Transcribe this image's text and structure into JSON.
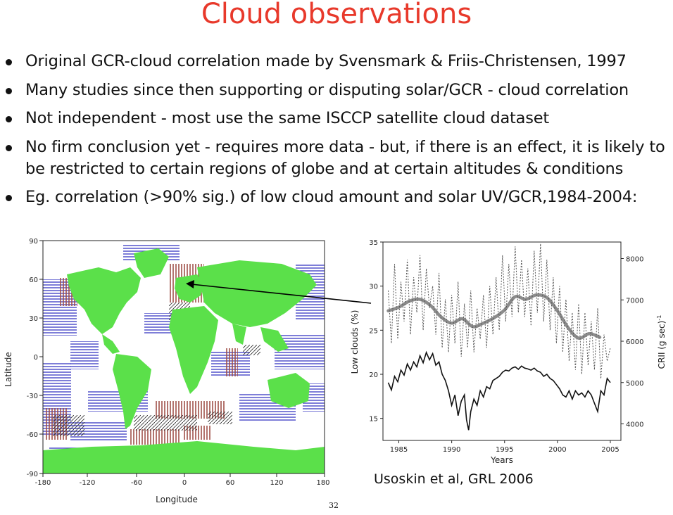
{
  "title": "Cloud observations",
  "bullets": [
    "Original GCR-cloud correlation made by Svensmark & Friis-Christensen, 1997",
    "Many studies since then supporting or disputing solar/GCR - cloud correlation",
    "Not independent - most use the same ISCCP satellite cloud dataset",
    "No firm conclusion yet - requires more data - but, if there is an effect, it is likely to be restricted to certain regions of globe and at certain altitudes & conditions",
    "Eg. correlation (>90% sig.) of low cloud amount and solar UV/GCR,1984-2004:"
  ],
  "map": {
    "xlabel": "Longitude",
    "ylabel": "Latitude",
    "x_ticks": [
      "-180",
      "-120",
      "-60",
      "0",
      "60",
      "120",
      "180"
    ],
    "y_ticks": [
      "90",
      "60",
      "30",
      "0",
      "-30",
      "-60",
      "-90"
    ],
    "colors": {
      "land": "#5be04a",
      "positive": "#a0504a",
      "negative": "#4747c8",
      "hatch": "#333333"
    }
  },
  "chart_data": {
    "type": "line",
    "xlabel": "Years",
    "ylabel": "Low clouds (%)",
    "y2label": "CRII (g sec)",
    "y2label_exp": "-1",
    "xlim": [
      1983.5,
      2006
    ],
    "ylim": [
      12.5,
      35
    ],
    "y2lim": [
      3600,
      8400
    ],
    "x_ticks": [
      "1985",
      "1990",
      "1995",
      "2000",
      "2005"
    ],
    "y_ticks": [
      "15",
      "20",
      "25",
      "30",
      "35"
    ],
    "y2_ticks": [
      "4000",
      "5000",
      "6000",
      "7000",
      "8000"
    ],
    "series": [
      {
        "style": "smoothed",
        "color": "#8c8c8c",
        "x": [
          1984,
          1985,
          1986,
          1987,
          1988,
          1989,
          1990,
          1991,
          1992,
          1993,
          1994,
          1995,
          1996,
          1997,
          1998,
          1999,
          2000,
          2001,
          2002,
          2003,
          2004
        ],
        "y": [
          27.2,
          27.6,
          28.3,
          28.5,
          27.8,
          26.5,
          25.8,
          26.3,
          25.4,
          25.8,
          26.4,
          27.3,
          28.8,
          28.5,
          29.0,
          28.7,
          27.2,
          25.3,
          24.1,
          24.6,
          24.2
        ]
      },
      {
        "style": "dotted",
        "color": "#555555",
        "x": [
          1984,
          1984.3,
          1984.6,
          1984.9,
          1985.2,
          1985.5,
          1985.8,
          1986.1,
          1986.4,
          1986.7,
          1987.0,
          1987.3,
          1987.6,
          1987.9,
          1988.2,
          1988.5,
          1988.8,
          1989.1,
          1989.4,
          1989.7,
          1990.0,
          1990.3,
          1990.6,
          1990.9,
          1991.2,
          1991.5,
          1991.8,
          1992.1,
          1992.4,
          1992.7,
          1993.0,
          1993.3,
          1993.6,
          1993.9,
          1994.2,
          1994.5,
          1994.8,
          1995.1,
          1995.4,
          1995.7,
          1996.0,
          1996.3,
          1996.6,
          1996.9,
          1997.2,
          1997.5,
          1997.8,
          1998.1,
          1998.4,
          1998.7,
          1999.0,
          1999.3,
          1999.6,
          1999.9,
          2000.2,
          2000.5,
          2000.8,
          2001.1,
          2001.4,
          2001.7,
          2002.0,
          2002.3,
          2002.6,
          2002.9,
          2003.2,
          2003.5,
          2003.8,
          2004.1,
          2004.4,
          2004.7,
          2005.0
        ],
        "y": [
          29.5,
          23.5,
          32.5,
          24.0,
          30.5,
          26.0,
          33.0,
          24.5,
          31.0,
          27.0,
          33.5,
          25.0,
          32.0,
          27.5,
          30.0,
          24.5,
          31.5,
          23.0,
          28.5,
          22.5,
          29.0,
          23.5,
          30.5,
          22.0,
          28.0,
          23.0,
          29.5,
          22.5,
          27.5,
          24.0,
          29.0,
          23.0,
          30.0,
          24.5,
          31.0,
          25.0,
          33.5,
          26.0,
          32.5,
          26.5,
          34.5,
          27.0,
          33.0,
          26.5,
          32.0,
          25.5,
          34.0,
          27.0,
          34.8,
          26.0,
          33.0,
          25.0,
          31.0,
          23.5,
          30.0,
          22.5,
          28.5,
          21.5,
          27.0,
          20.5,
          28.0,
          20.0,
          27.0,
          21.0,
          26.0,
          20.5,
          27.5,
          19.5,
          24.5,
          21.5,
          23.0
        ]
      },
      {
        "style": "solid",
        "color": "#111111",
        "x": [
          1984,
          1984.3,
          1984.6,
          1984.9,
          1985.2,
          1985.5,
          1985.8,
          1986.1,
          1986.4,
          1986.7,
          1987.0,
          1987.3,
          1987.6,
          1987.9,
          1988.2,
          1988.5,
          1988.8,
          1989.1,
          1989.4,
          1989.7,
          1990.0,
          1990.3,
          1990.6,
          1990.9,
          1991.2,
          1991.4,
          1991.6,
          1991.8,
          1992.1,
          1992.4,
          1992.7,
          1993.0,
          1993.3,
          1993.6,
          1993.9,
          1994.2,
          1994.5,
          1994.8,
          1995.1,
          1995.4,
          1995.7,
          1996.0,
          1996.3,
          1996.6,
          1996.9,
          1997.2,
          1997.5,
          1997.8,
          1998.1,
          1998.4,
          1998.7,
          1999.0,
          1999.3,
          1999.6,
          1999.9,
          2000.2,
          2000.5,
          2000.8,
          2001.1,
          2001.4,
          2001.7,
          2002.0,
          2002.3,
          2002.6,
          2002.9,
          2003.2,
          2003.5,
          2003.8,
          2004.1,
          2004.4,
          2004.7,
          2005.0
        ],
        "y2": [
          5000,
          4820,
          5150,
          5020,
          5300,
          5180,
          5450,
          5300,
          5500,
          5380,
          5650,
          5480,
          5730,
          5550,
          5700,
          5420,
          5500,
          5200,
          5050,
          4800,
          4450,
          4700,
          4200,
          4550,
          4700,
          4100,
          3850,
          4300,
          4600,
          4450,
          4800,
          4650,
          4900,
          4850,
          5050,
          5100,
          5150,
          5250,
          5300,
          5280,
          5350,
          5380,
          5320,
          5400,
          5350,
          5330,
          5300,
          5350,
          5280,
          5250,
          5150,
          5200,
          5100,
          5050,
          4950,
          4850,
          4700,
          4650,
          4800,
          4600,
          4800,
          4700,
          4750,
          4650,
          4800,
          4700,
          4500,
          4300,
          4800,
          4700,
          5100,
          5000
        ]
      }
    ]
  },
  "citation": "Usoskin et al, GRL 2006",
  "page_number": "32"
}
